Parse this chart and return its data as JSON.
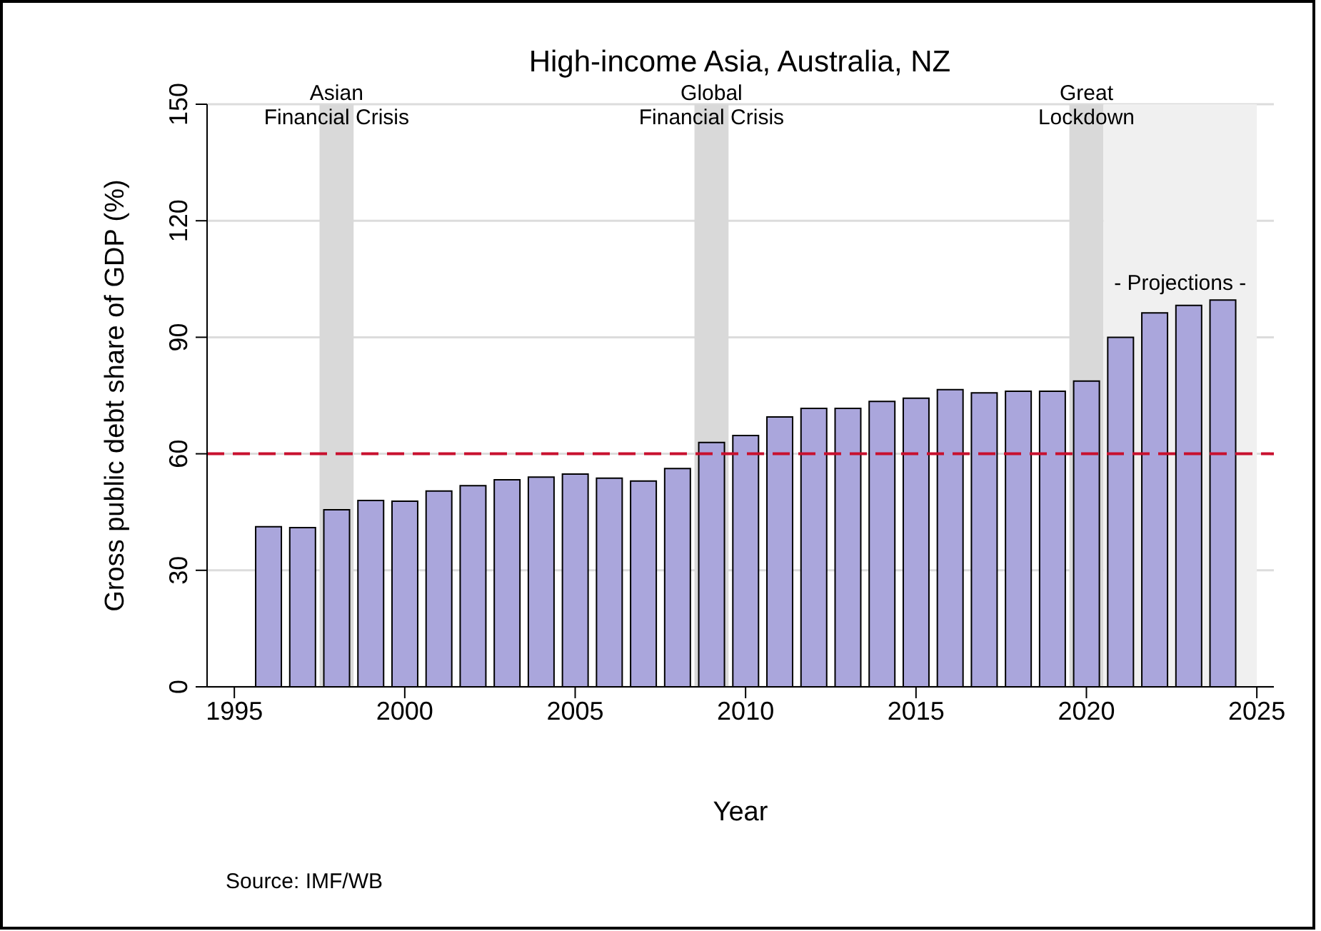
{
  "chart_data": {
    "type": "bar",
    "title": "High-income Asia, Australia, NZ",
    "xlabel": "Year",
    "ylabel": "Gross public debt share of GDP (%)",
    "x": [
      1996,
      1997,
      1998,
      1999,
      2000,
      2001,
      2002,
      2003,
      2004,
      2005,
      2006,
      2007,
      2008,
      2009,
      2010,
      2011,
      2012,
      2013,
      2014,
      2015,
      2016,
      2017,
      2018,
      2019,
      2020,
      2021,
      2022,
      2023,
      2024
    ],
    "values": [
      41.2,
      41,
      45.6,
      48,
      47.8,
      50.4,
      51.8,
      53.3,
      54,
      54.8,
      53.7,
      53,
      56.2,
      62.9,
      64.7,
      69.5,
      71.7,
      71.7,
      73.5,
      74.3,
      76.5,
      75.7,
      76.1,
      76.1,
      78.7,
      90,
      96.3,
      98.2,
      99.6
    ],
    "color": "#aaa6dc",
    "xlim": [
      1994.2,
      2025.5
    ],
    "xticks": [
      1995,
      2000,
      2005,
      2010,
      2015,
      2020,
      2025
    ],
    "ylim": [
      0,
      150
    ],
    "yticks": [
      0,
      30,
      60,
      90,
      120,
      150
    ],
    "grid": "y",
    "ref_lines": [
      {
        "axis": "y",
        "value": 60,
        "color": "#c8102e",
        "line_style": "dashed"
      }
    ],
    "bands": [
      {
        "axis": "x",
        "from": 1997.5,
        "to": 1998.5,
        "label": "Asian\nFinancial Crisis",
        "color": "#d9d9d9"
      },
      {
        "axis": "x",
        "from": 2008.5,
        "to": 2009.5,
        "label": "Global\nFinancial Crisis",
        "color": "#d9d9d9"
      },
      {
        "axis": "x",
        "from": 2019.5,
        "to": 2020.5,
        "label": "Great\nLockdown",
        "color": "#d9d9d9"
      },
      {
        "axis": "x",
        "from": 2020.5,
        "to": 2025,
        "label": "- Projections -",
        "color": "#f0f0f0"
      }
    ],
    "annotations": [
      "Source: IMF/WB"
    ]
  }
}
